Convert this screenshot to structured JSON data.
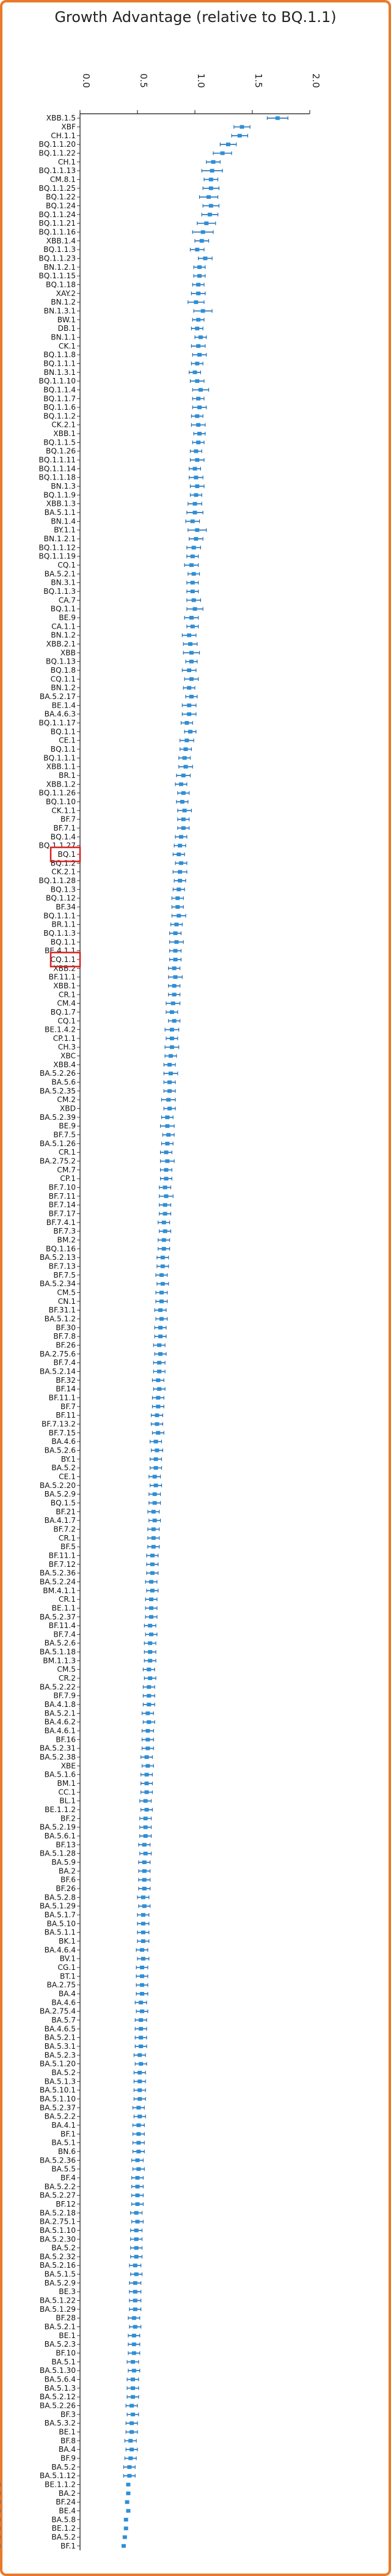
{
  "colors": {
    "frame": "#e87a2a",
    "point": "#2e8fd8",
    "whisker": "#1f6fb6",
    "highlight": "#d62020",
    "axis": "#111111"
  },
  "chart_data": {
    "type": "scatter",
    "title": "Growth Advantage (relative to BQ.1.1)",
    "xlabel": "",
    "ylabel": "",
    "xlim": [
      0.0,
      2.0
    ],
    "xticks": [
      0.0,
      0.5,
      1.0,
      1.5,
      2.0
    ],
    "xtick_labels": [
      "0.0",
      "0.5",
      "1.0",
      "1.5",
      "2.0"
    ],
    "grid": false,
    "highlighted": [
      84,
      96
    ],
    "categories": [
      "XBB.1.5",
      "XBF",
      "CH.1.1",
      "BQ.1.1.20",
      "BQ.1.1.22",
      "CH.1",
      "BQ.1.1.13",
      "CM.8.1",
      "BQ.1.1.25",
      "BQ.1.22",
      "BQ.1.24",
      "BQ.1.1.24",
      "BQ.1.1.21",
      "BQ.1.1.16",
      "XBB.1.4",
      "BQ.1.1.3",
      "BQ.1.1.23",
      "BN.1.2.1",
      "BQ.1.1.15",
      "BQ.1.18",
      "XAY.2",
      "BN.1.2",
      "BN.1.3.1",
      "BW.1",
      "DB.1",
      "BN.1.1",
      "CK.1",
      "BQ.1.1.8",
      "BQ.1.1.1",
      "BN.1.3.1",
      "BQ.1.1.10",
      "BQ.1.1.4",
      "BQ.1.1.7",
      "BQ.1.1.6",
      "BQ.1.1.2",
      "CK.2.1",
      "XBB.1",
      "BQ.1.1.5",
      "BQ.1.26",
      "BQ.1.1.11",
      "BQ.1.1.14",
      "BQ.1.1.18",
      "BN.1.3",
      "BQ.1.1.9",
      "XBB.1.3",
      "BA.5.1.1",
      "BN.1.4",
      "BY.1.1",
      "BN.1.2.1",
      "BQ.1.1.12",
      "BQ.1.1.19",
      "CQ.1",
      "BA.5.2.1",
      "BN.3.1",
      "BQ.1.1.3",
      "CA.7",
      "BQ.1.1",
      "BE.9",
      "CA.1.1",
      "BN.1.2",
      "XBB.2.1",
      "XBB",
      "BQ.1.13",
      "BQ.1.8",
      "CQ.1.1",
      "BN.1.2",
      "BA.5.2.17",
      "BE.1.4",
      "BA.4.6.3",
      "BQ.1.1.17",
      "BQ.1.1",
      "CE.1",
      "BQ.1.1",
      "BQ.1.1.1",
      "XBB.1.1",
      "BR.1",
      "XBB.1.2",
      "BQ.1.1.26",
      "BQ.1.10",
      "CK.1.1",
      "BF.7",
      "BF.7.1",
      "BQ.1.4",
      "BQ.1.1.27",
      "BQ.1",
      "BQ.1.2",
      "CK.2.1",
      "BQ.1.1.28",
      "BQ.1.3",
      "BQ.1.12",
      "BF.34",
      "BQ.1.1.1",
      "BR.1.1",
      "BQ.1.1.3",
      "BQ.1.1",
      "BE.4.1.1",
      "CQ.1.1",
      "XBB.2",
      "BF.11.1",
      "XBB.1",
      "CR.1",
      "CM.4",
      "BQ.1.7",
      "CQ.1",
      "BE.1.4.2",
      "CP.1.1",
      "CH.3",
      "XBC",
      "XBB.4",
      "BA.5.2.26",
      "BA.5.6",
      "BA.5.2.35",
      "CM.2",
      "XBD",
      "BA.5.2.39",
      "BE.9",
      "BF.7.5",
      "BA.5.1.26",
      "CR.1",
      "BA.2.75.2",
      "CM.7",
      "CP.1",
      "BF.7.10",
      "BF.7.11",
      "BF.7.14",
      "BF.7.17",
      "BF.7.4.1",
      "BF.7.3",
      "BM.2",
      "BQ.1.16",
      "BA.5.2.13",
      "BF.7.13",
      "BF.7.5",
      "BA.5.2.34",
      "CM.5",
      "CN.1",
      "BF.31.1",
      "BA.5.1.2",
      "BF.30",
      "BF.7.8",
      "BF.26",
      "BA.2.75.6",
      "BF.7.4",
      "BA.5.2.14",
      "BF.32",
      "BF.14",
      "BF.11.1",
      "BF.7",
      "BF.11",
      "BF.7.13.2",
      "BF.7.15",
      "BA.4.6",
      "BA.5.2.6",
      "BY.1",
      "BA.5.2",
      "CE.1",
      "BA.5.2.20",
      "BA.5.2.9",
      "BQ.1.5",
      "BF.21",
      "BA.4.1.7",
      "BF.7.2",
      "CR.1",
      "BF.5",
      "BF.11.1",
      "BF.7.12",
      "BA.5.2.36",
      "BA.5.2.24",
      "BM.4.1.1",
      "CR.1",
      "BE.1.1",
      "BA.5.2.37",
      "BF.11.4",
      "BF.7.4",
      "BA.5.2.6",
      "BA.5.1.18",
      "BM.1.1.3",
      "CM.5",
      "CR.2",
      "BA.5.2.22",
      "BF.7.9",
      "BA.4.1.8",
      "BA.5.2.1",
      "BA.4.6.2",
      "BA.4.6.1",
      "BF.16",
      "BA.5.2.31",
      "BA.5.2.38",
      "XBE",
      "BA.5.1.6",
      "BM.1",
      "CC.1",
      "BL.1",
      "BE.1.1.2",
      "BF.2",
      "BA.5.2.19",
      "BA.5.6.1",
      "BF.13",
      "BA.5.1.28",
      "BA.5.9",
      "BA.2",
      "BF.6",
      "BF.26",
      "BA.5.2.8",
      "BA.5.1.29",
      "BA.5.1.7",
      "BA.5.10",
      "BA.5.1.1",
      "BK.1",
      "BA.4.6.4",
      "BV.1",
      "CG.1",
      "BT.1",
      "BA.2.75",
      "BA.4",
      "BA.4.6",
      "BA.2.75.4",
      "BA.5.7",
      "BA.4.6.5",
      "BA.5.2.1",
      "BA.5.3.1",
      "BA.5.2.3",
      "BA.5.1.20",
      "BA.5.2",
      "BA.5.1.3",
      "BA.5.10.1",
      "BA.5.1.10",
      "BA.5.2.37",
      "BA.5.2.2",
      "BA.4.1",
      "BF.1",
      "BA.5.1",
      "BN.6",
      "BA.5.2.36",
      "BA.5.5",
      "BF.4",
      "BA.5.2.2",
      "BA.5.2.27",
      "BF.12",
      "BA.5.2.18",
      "BA.2.75.1",
      "BA.5.1.10",
      "BA.5.2.30",
      "BA.5.2",
      "BA.5.2.32",
      "BA.5.2.16",
      "BA.5.1.5",
      "BA.5.2.9",
      "BE.3",
      "BA.5.1.22",
      "BA.5.1.29",
      "BF.28",
      "BA.5.2.1",
      "BE.1",
      "BA.5.2.3",
      "BF.10",
      "BA.5.1",
      "BA.5.1.30",
      "BA.5.6.4",
      "BA.5.1.3",
      "BA.5.2.12",
      "BA.5.2.26",
      "BF.3",
      "BA.5.3.2",
      "BE.1",
      "BF.8",
      "BA.4",
      "BF.9",
      "BA.5.2",
      "BA.5.1.12",
      "BE.1.1.2",
      "BA.2",
      "BF.24",
      "BE.4",
      "BA.5.8",
      "BE.1.2",
      "BA.5.2",
      "BF.1"
    ],
    "estimates": [
      1.72,
      1.41,
      1.39,
      1.29,
      1.24,
      1.16,
      1.15,
      1.14,
      1.14,
      1.12,
      1.14,
      1.13,
      1.1,
      1.07,
      1.06,
      1.02,
      1.09,
      1.04,
      1.04,
      1.03,
      1.03,
      1.01,
      1.07,
      1.03,
      1.02,
      1.05,
      1.03,
      1.04,
      1.02,
      1.0,
      1.02,
      1.05,
      1.03,
      1.04,
      1.02,
      1.03,
      1.04,
      1.03,
      1.01,
      1.02,
      1.0,
      1.01,
      1.02,
      1.01,
      1.0,
      1.0,
      0.98,
      1.02,
      1.01,
      0.99,
      0.98,
      0.97,
      0.99,
      0.98,
      0.98,
      0.99,
      1.0,
      0.97,
      0.98,
      0.95,
      0.96,
      0.97,
      0.97,
      0.95,
      0.97,
      0.95,
      0.97,
      0.95,
      0.95,
      0.93,
      0.96,
      0.93,
      0.92,
      0.91,
      0.92,
      0.9,
      0.88,
      0.9,
      0.89,
      0.91,
      0.9,
      0.9,
      0.88,
      0.87,
      0.86,
      0.88,
      0.87,
      0.87,
      0.86,
      0.85,
      0.85,
      0.86,
      0.84,
      0.83,
      0.84,
      0.83,
      0.83,
      0.82,
      0.83,
      0.82,
      0.82,
      0.81,
      0.8,
      0.82,
      0.8,
      0.8,
      0.8,
      0.79,
      0.78,
      0.79,
      0.78,
      0.78,
      0.77,
      0.78,
      0.76,
      0.76,
      0.77,
      0.76,
      0.75,
      0.76,
      0.75,
      0.75,
      0.74,
      0.75,
      0.74,
      0.74,
      0.73,
      0.74,
      0.73,
      0.73,
      0.72,
      0.72,
      0.71,
      0.72,
      0.71,
      0.71,
      0.7,
      0.71,
      0.7,
      0.7,
      0.69,
      0.7,
      0.69,
      0.69,
      0.68,
      0.69,
      0.68,
      0.68,
      0.67,
      0.67,
      0.68,
      0.66,
      0.67,
      0.66,
      0.66,
      0.65,
      0.66,
      0.65,
      0.65,
      0.64,
      0.65,
      0.64,
      0.64,
      0.64,
      0.63,
      0.63,
      0.63,
      0.62,
      0.63,
      0.62,
      0.62,
      0.62,
      0.61,
      0.62,
      0.61,
      0.61,
      0.61,
      0.6,
      0.61,
      0.6,
      0.6,
      0.6,
      0.59,
      0.6,
      0.59,
      0.59,
      0.59,
      0.58,
      0.59,
      0.58,
      0.58,
      0.58,
      0.57,
      0.58,
      0.57,
      0.57,
      0.57,
      0.56,
      0.57,
      0.56,
      0.56,
      0.56,
      0.56,
      0.55,
      0.56,
      0.55,
      0.55,
      0.55,
      0.55,
      0.54,
      0.55,
      0.54,
      0.54,
      0.54,
      0.54,
      0.53,
      0.54,
      0.53,
      0.53,
      0.53,
      0.53,
      0.52,
      0.53,
      0.52,
      0.52,
      0.52,
      0.52,
      0.51,
      0.52,
      0.51,
      0.51,
      0.51,
      0.51,
      0.5,
      0.51,
      0.5,
      0.5,
      0.5,
      0.5,
      0.49,
      0.5,
      0.49,
      0.49,
      0.49,
      0.49,
      0.48,
      0.49,
      0.48,
      0.48,
      0.48,
      0.48,
      0.47,
      0.48,
      0.47,
      0.47,
      0.47,
      0.46,
      0.47,
      0.46,
      0.46,
      0.46,
      0.45,
      0.46,
      0.45,
      0.45,
      0.44,
      0.45,
      0.44,
      0.43,
      0.43,
      0.42,
      0.42,
      0.41,
      0.42,
      0.4,
      0.4,
      0.39,
      0.38,
      0.37,
      0.4
    ],
    "ci_half_width": [
      0.09,
      0.07,
      0.07,
      0.07,
      0.08,
      0.06,
      0.09,
      0.06,
      0.07,
      0.08,
      0.07,
      0.07,
      0.08,
      0.09,
      0.06,
      0.06,
      0.06,
      0.05,
      0.05,
      0.05,
      0.06,
      0.07,
      0.08,
      0.05,
      0.05,
      0.05,
      0.06,
      0.06,
      0.05,
      0.05,
      0.06,
      0.07,
      0.05,
      0.06,
      0.05,
      0.06,
      0.05,
      0.05,
      0.05,
      0.06,
      0.05,
      0.06,
      0.06,
      0.05,
      0.06,
      0.07,
      0.06,
      0.08,
      0.06,
      0.06,
      0.05,
      0.06,
      0.05,
      0.05,
      0.05,
      0.06,
      0.07,
      0.06,
      0.05,
      0.06,
      0.06,
      0.07,
      0.05,
      0.06,
      0.06,
      0.05,
      0.05,
      0.06,
      0.06,
      0.05,
      0.05,
      0.06,
      0.05,
      0.05,
      0.06,
      0.06,
      0.05,
      0.05,
      0.05,
      0.06,
      0.05,
      0.05,
      0.05,
      0.05,
      0.05,
      0.05,
      0.06,
      0.05,
      0.05,
      0.05,
      0.05,
      0.06,
      0.05,
      0.05,
      0.06,
      0.05,
      0.05,
      0.05,
      0.06,
      0.05,
      0.05,
      0.06,
      0.05,
      0.05,
      0.06,
      0.05,
      0.06,
      0.05,
      0.05,
      0.06,
      0.05,
      0.05,
      0.06,
      0.05,
      0.05,
      0.06,
      0.05,
      0.05,
      0.05,
      0.06,
      0.05,
      0.05,
      0.05,
      0.06,
      0.05,
      0.05,
      0.05,
      0.05,
      0.05,
      0.05,
      0.05,
      0.05,
      0.05,
      0.05,
      0.05,
      0.05,
      0.05,
      0.05,
      0.05,
      0.05,
      0.05,
      0.05,
      0.05,
      0.05,
      0.05,
      0.05,
      0.05,
      0.05,
      0.05,
      0.05,
      0.05,
      0.05,
      0.05,
      0.05,
      0.05,
      0.05,
      0.05,
      0.05,
      0.05,
      0.05,
      0.05,
      0.05,
      0.05,
      0.05,
      0.05,
      0.05,
      0.05,
      0.05,
      0.05,
      0.05,
      0.05,
      0.05,
      0.05,
      0.05,
      0.05,
      0.05,
      0.05,
      0.05,
      0.05,
      0.05,
      0.05,
      0.05,
      0.05,
      0.05,
      0.05,
      0.05,
      0.05,
      0.05,
      0.05,
      0.05,
      0.05,
      0.05,
      0.05,
      0.05,
      0.05,
      0.05,
      0.05,
      0.05,
      0.05,
      0.05,
      0.05,
      0.05,
      0.05,
      0.05,
      0.05,
      0.05,
      0.05,
      0.05,
      0.05,
      0.05,
      0.05,
      0.05,
      0.05,
      0.05,
      0.05,
      0.05,
      0.05,
      0.05,
      0.05,
      0.05,
      0.05,
      0.05,
      0.05,
      0.05,
      0.05,
      0.05,
      0.05,
      0.05,
      0.05,
      0.05,
      0.05,
      0.05,
      0.05,
      0.05,
      0.05,
      0.05,
      0.05,
      0.05,
      0.05,
      0.05,
      0.05,
      0.05,
      0.05,
      0.05,
      0.05,
      0.05,
      0.05,
      0.05,
      0.05,
      0.05,
      0.05,
      0.05,
      0.05,
      0.05,
      0.05,
      0.05,
      0.05,
      0.05,
      0.05,
      0.05,
      0.05,
      0.05,
      0.05,
      0.05,
      0.05,
      0.05,
      0.05,
      0.05,
      0.05,
      0.05
    ]
  }
}
